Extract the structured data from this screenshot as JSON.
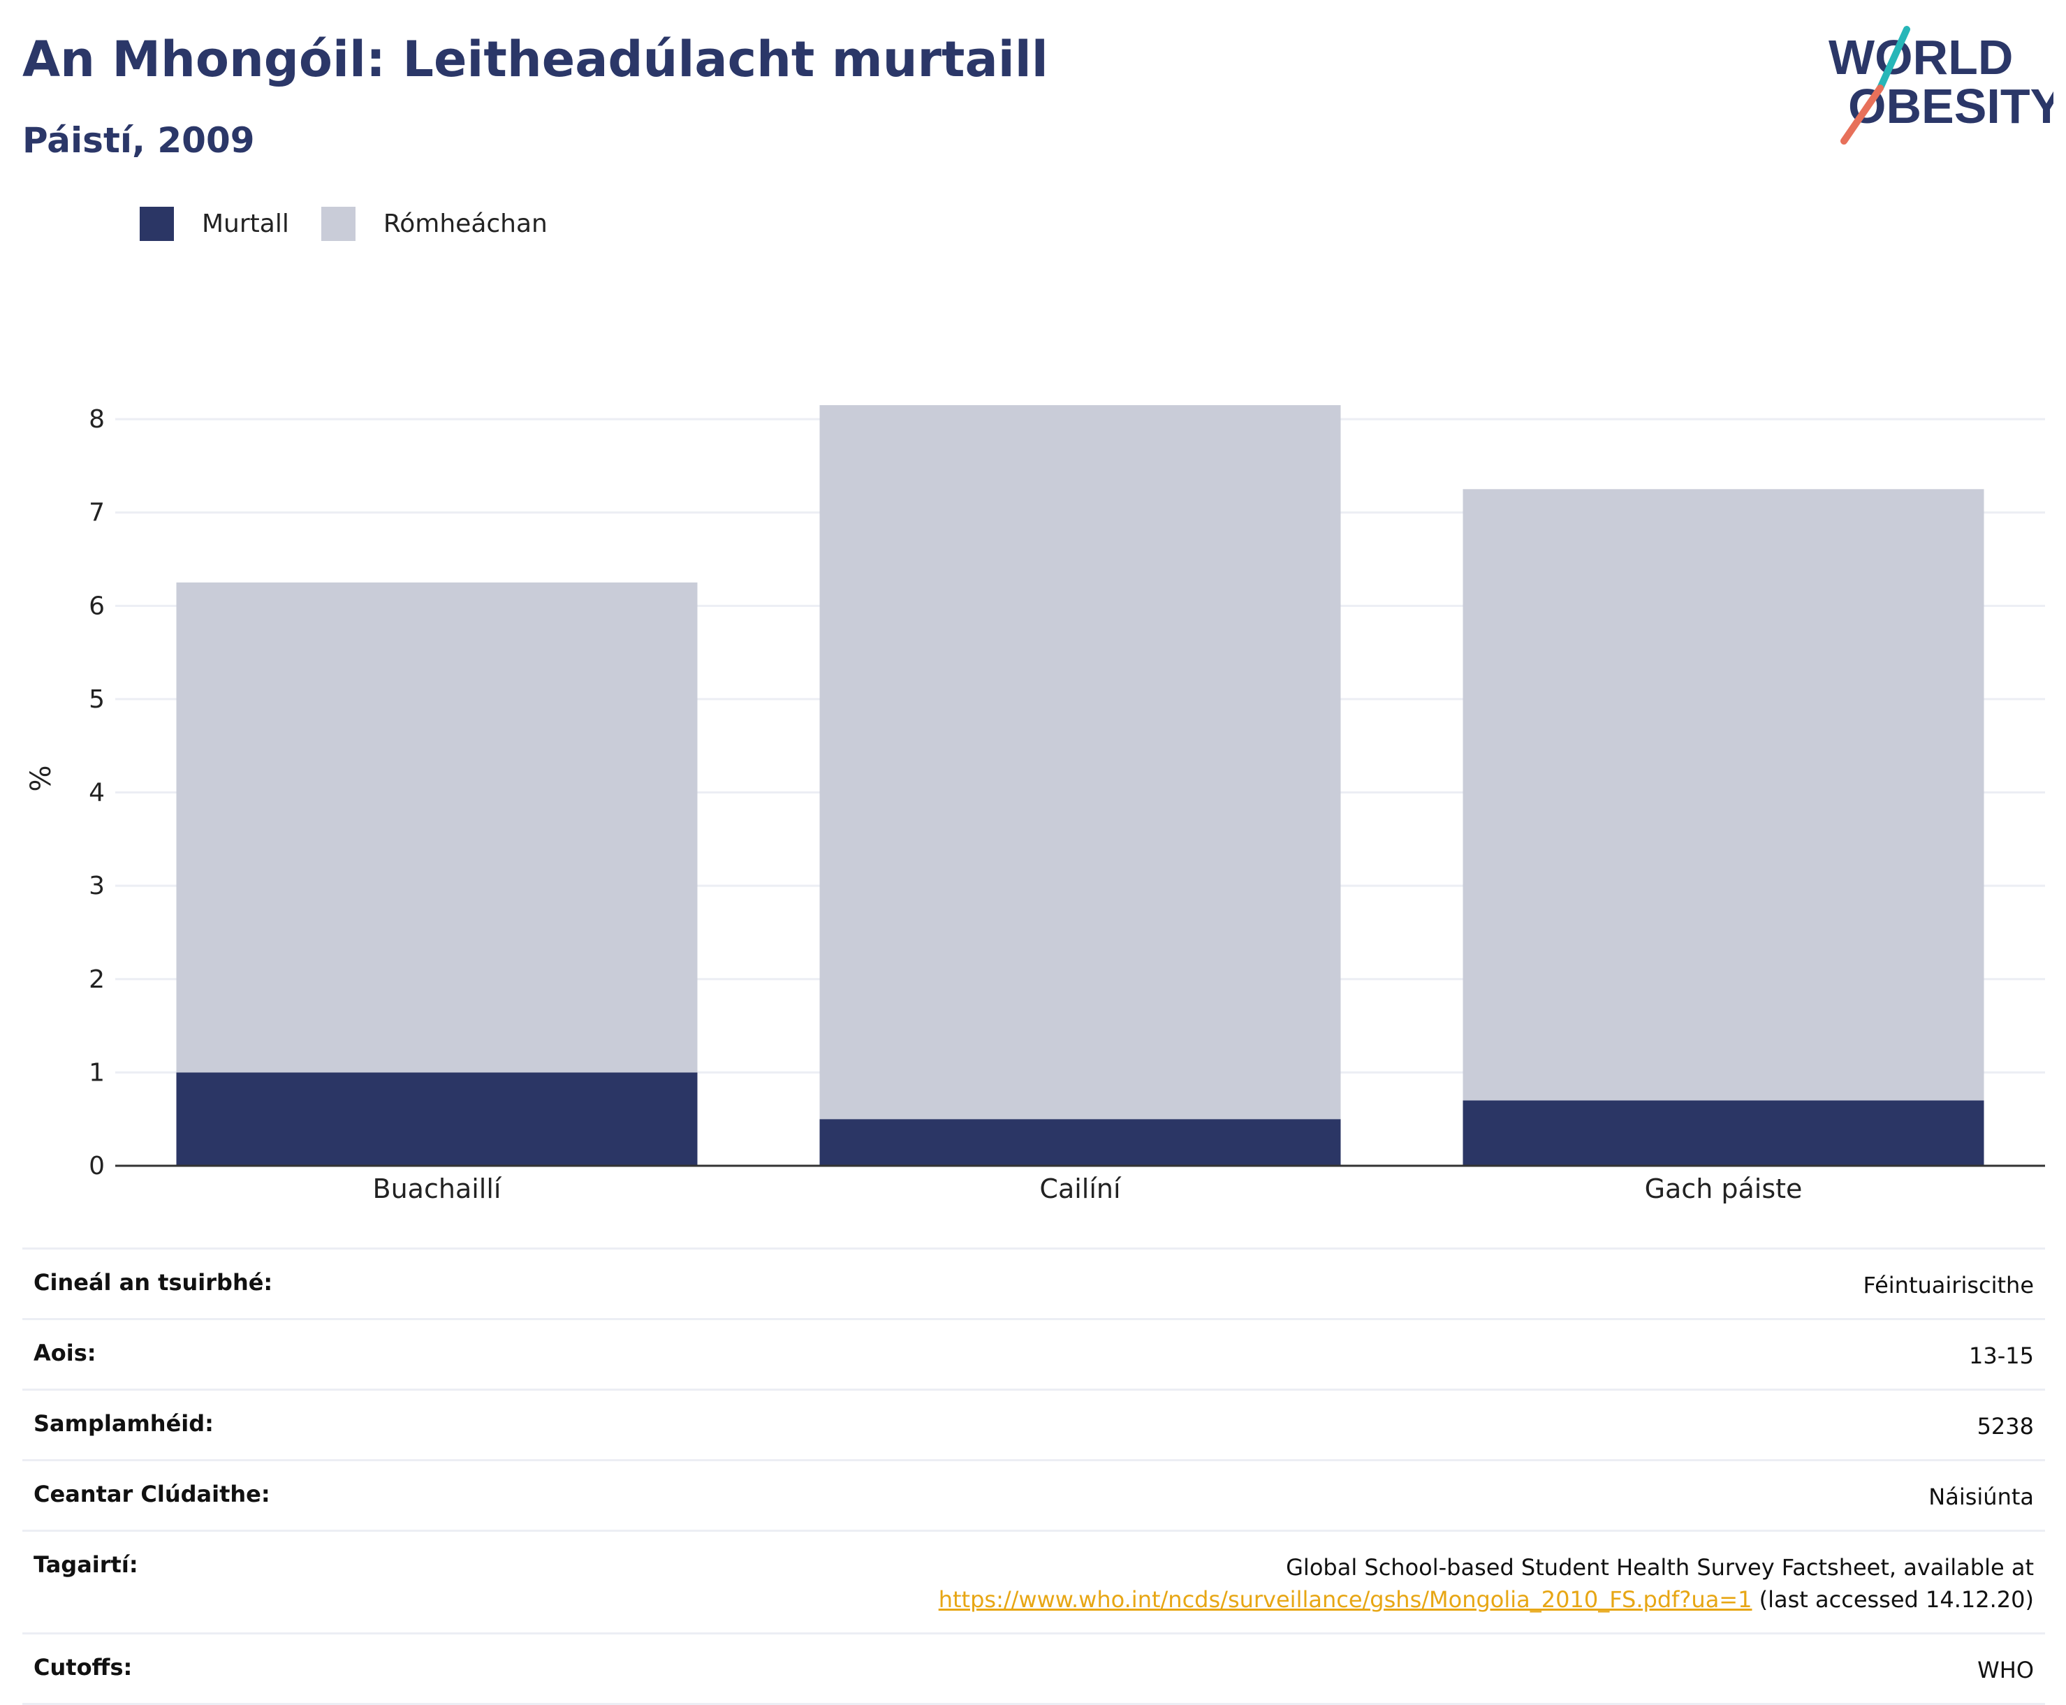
{
  "header": {
    "title": "An Mhongóil: Leitheadúlacht murtaill",
    "subtitle": "Páistí, 2009"
  },
  "logo": {
    "line1": "WORLD",
    "line2": "OBESITY"
  },
  "colors": {
    "brand": "#2b3768",
    "obese": "#2b3665",
    "overweight": "#c9ccd8",
    "link": "#e7a614",
    "logo_teal": "#27b6b8",
    "logo_coral": "#e7705a"
  },
  "chart_data": {
    "type": "bar",
    "stacked": true,
    "categories": [
      "Buachaillí",
      "Cailíní",
      "Gach páiste"
    ],
    "series": [
      {
        "name": "Murtall",
        "values": [
          1.0,
          0.5,
          0.7
        ],
        "color": "#2b3665"
      },
      {
        "name": "Rómheáchan",
        "values": [
          5.25,
          7.65,
          6.55
        ],
        "color": "#c9ccd8"
      }
    ],
    "totals": [
      6.25,
      8.15,
      7.25
    ],
    "ylabel": "%",
    "ylim": [
      0,
      8.3
    ],
    "yticks": [
      0,
      1,
      2,
      3,
      4,
      5,
      6,
      7,
      8
    ],
    "grid": true,
    "legend_position": "top-left"
  },
  "details": [
    {
      "label": "Cineál an tsuirbhé:",
      "value": "Féintuairiscithe"
    },
    {
      "label": "Aois:",
      "value": "13-15"
    },
    {
      "label": "Samplamhéid:",
      "value": "5238"
    },
    {
      "label": "Ceantar Clúdaithe:",
      "value": "Náisiúnta"
    },
    {
      "label": "Tagairtí:",
      "value_line1": "Global School-based Student Health Survey Factsheet, available at",
      "link": "https://www.who.int/ncds/surveillance/gshs/Mongolia_2010_FS.pdf?ua=1",
      "value_suffix": " (last accessed 14.12.20)"
    },
    {
      "label": "Cutoffs:",
      "value": "WHO"
    }
  ]
}
